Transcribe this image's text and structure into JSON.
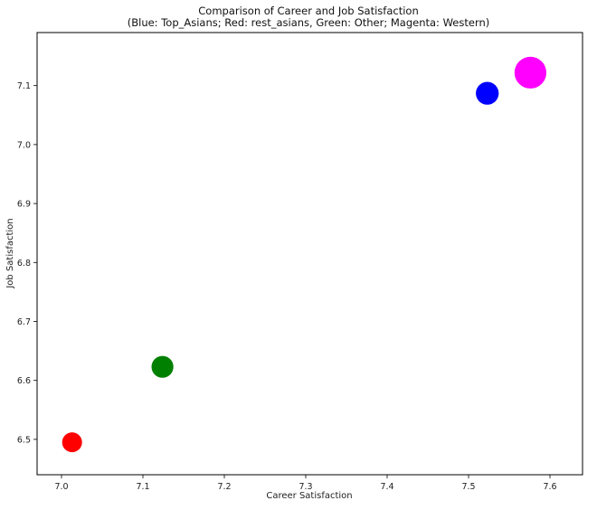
{
  "chart_data": {
    "type": "scatter",
    "title": "Comparison of Career and Job Satisfaction",
    "subtitle": "(Blue: Top_Asians; Red: rest_asians, Green: Other; Magenta: Western)",
    "xlabel": "Career Satisfaction",
    "ylabel": "Job Satisfaction",
    "xlim": [
      6.97,
      7.64
    ],
    "ylim": [
      6.44,
      7.19
    ],
    "xticks": [
      "7.0",
      "7.1",
      "7.2",
      "7.3",
      "7.4",
      "7.5",
      "7.6"
    ],
    "yticks": [
      "6.5",
      "6.6",
      "6.7",
      "6.8",
      "6.9",
      "7.0",
      "7.1"
    ],
    "grid": false,
    "points": [
      {
        "x": 7.013,
        "y": 6.495,
        "color": "#ff0000",
        "size": 1
      },
      {
        "x": 7.124,
        "y": 6.623,
        "color": "#008000",
        "size": 1.1
      },
      {
        "x": 7.523,
        "y": 7.087,
        "color": "#0000ff",
        "size": 1.15
      },
      {
        "x": 7.576,
        "y": 7.122,
        "color": "#ff00ff",
        "size": 1.6
      }
    ]
  }
}
